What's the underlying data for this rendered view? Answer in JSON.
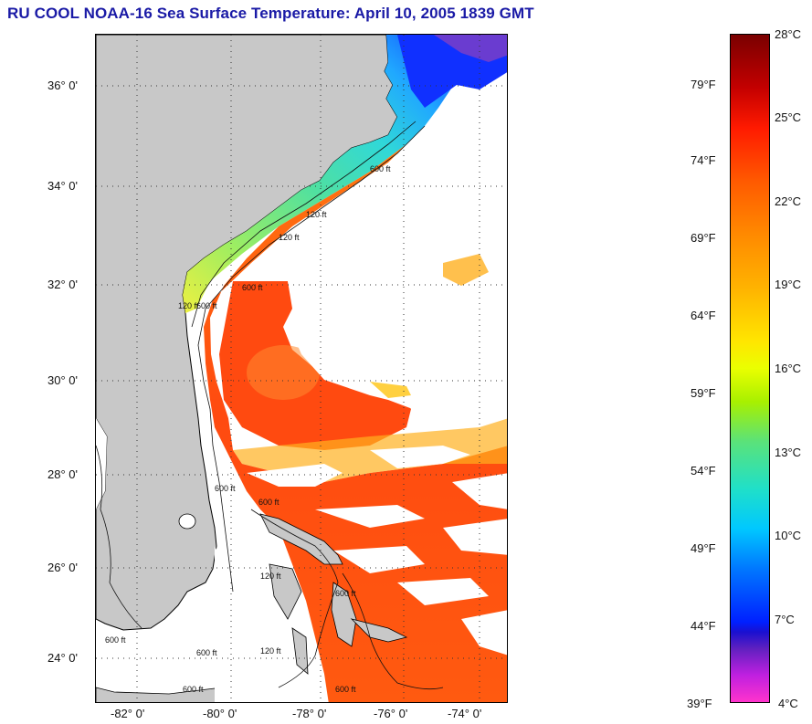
{
  "title": "RU COOL  NOAA-16  Sea Surface Temperature:  April 10, 2005 1839 GMT",
  "map": {
    "lat_ticks": [
      "36° 0'",
      "34° 0'",
      "32° 0'",
      "30° 0'",
      "28° 0'",
      "26° 0'",
      "24° 0'"
    ],
    "lon_ticks": [
      "-82° 0'",
      "-80° 0'",
      "-78° 0'",
      "-76° 0'",
      "-74° 0'"
    ],
    "contour_labels": [
      "600 ft",
      "120 ft",
      "120 ft",
      "600 ft",
      "600 ft",
      "120 ft",
      "600 ft",
      "600 ft",
      "120 ft",
      "600 ft",
      "600 ft",
      "600 ft",
      "120 ft",
      "600 ft",
      "600 ft"
    ],
    "colors": {
      "land": "#c8c8c8",
      "cloud": "#ffffff",
      "gulf_stream": "#ff5a10",
      "shelf_warm": "#ffb020",
      "shelf_green": "#60e090",
      "shelf_cyan": "#30d8d0",
      "cold_blue": "#1030ff",
      "coldest_purple": "#7040c0"
    }
  },
  "colorbar": {
    "fahrenheit_labels": [
      "79°F",
      "74°F",
      "69°F",
      "64°F",
      "59°F",
      "54°F",
      "49°F",
      "44°F",
      "39°F"
    ],
    "celsius_labels": [
      "28°C",
      "25°C",
      "22°C",
      "19°C",
      "16°C",
      "13°C",
      "10°C",
      "7°C",
      "4°C"
    ]
  }
}
